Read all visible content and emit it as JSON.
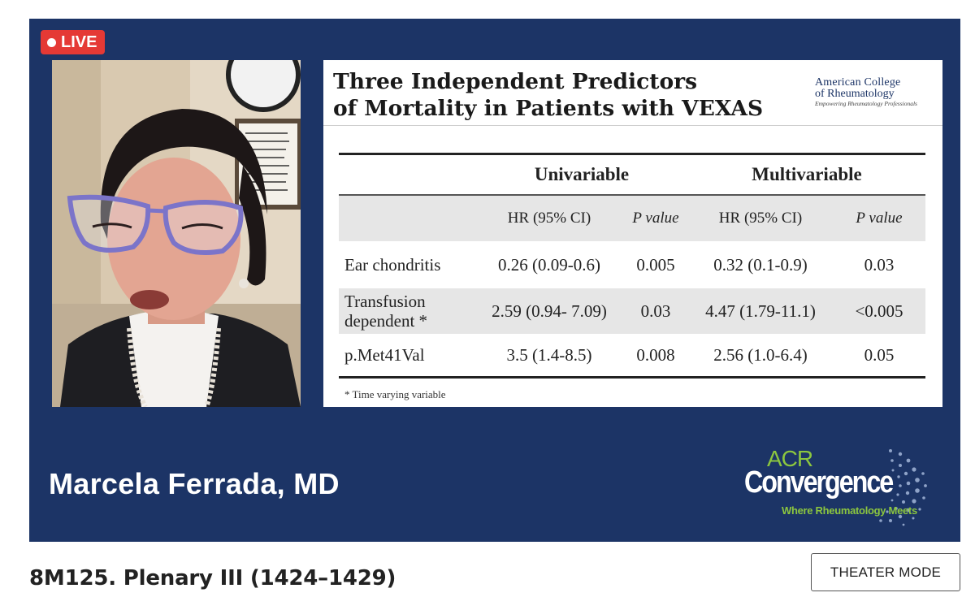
{
  "live_badge": "LIVE",
  "slide": {
    "title": "Three Independent Predictors\nof Mortality in Patients with VEXAS",
    "logo": {
      "line1": "American College",
      "line2": "of Rheumatology",
      "tagline": "Empowering Rheumatology Professionals"
    },
    "table": {
      "group_headers": [
        "Univariable",
        "Multivariable"
      ],
      "sub_headers": [
        "HR (95% CI)",
        "P value",
        "HR (95% CI)",
        "P value"
      ],
      "rows": [
        {
          "label": "Ear chondritis",
          "uni_hr": "0.26 (0.09-0.6)",
          "uni_p": "0.005",
          "multi_hr": "0.32 (0.1-0.9)",
          "multi_p": "0.03"
        },
        {
          "label": "Transfusion dependent *",
          "uni_hr": "2.59 (0.94- 7.09)",
          "uni_p": "0.03",
          "multi_hr": "4.47 (1.79-11.1)",
          "multi_p": "<0.005"
        },
        {
          "label": "p.Met41Val",
          "uni_hr": "3.5 (1.4-8.5)",
          "uni_p": "0.008",
          "multi_hr": "2.56 (1.0-6.4)",
          "multi_p": "0.05"
        }
      ]
    },
    "footnote": "* Time varying variable"
  },
  "presenter_name": "Marcela Ferrada, MD",
  "brand": {
    "top": "ACR",
    "main": "Convergence",
    "tagline": "Where Rheumatology Meets"
  },
  "page_title": "8M125. Plenary III (1424–1429)",
  "theater_button": "THEATER MODE",
  "colors": {
    "stage_bg": "#1c3466",
    "live_red": "#e53935",
    "brand_green": "#8cc63f"
  }
}
